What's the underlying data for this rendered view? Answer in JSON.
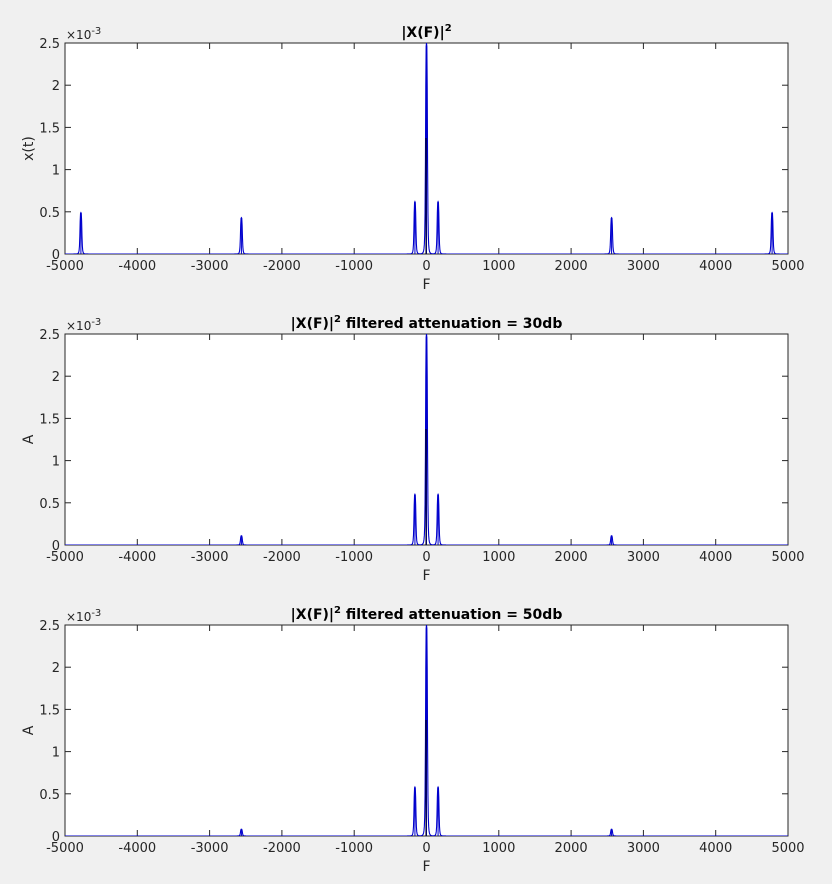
{
  "figure": {
    "background": "#f0f0f0",
    "axes_background": "#ffffff",
    "line_color": "#0000cd"
  },
  "chart_data": [
    {
      "type": "line",
      "title_main": "|X(F)|",
      "title_sup": "2",
      "title_rest": "",
      "xlabel": "F",
      "ylabel": "x(t)",
      "xlim": [
        -5000,
        5000
      ],
      "ylim": [
        0,
        2.5
      ],
      "y_exponent_base": "×10",
      "y_exponent": "-3",
      "x_ticks": [
        "-5000",
        "-4000",
        "-3000",
        "-2000",
        "-1000",
        "0",
        "1000",
        "2000",
        "3000",
        "4000",
        "5000"
      ],
      "y_ticks": [
        "0",
        "0.5",
        "1",
        "1.5",
        "2",
        "2.5"
      ],
      "grid": false,
      "series": [
        {
          "peaks": [
            {
              "f": -4780,
              "a": 0.49
            },
            {
              "f": -2560,
              "a": 0.43
            },
            {
              "f": -160,
              "a": 0.62
            },
            {
              "f": 0,
              "a": 2.5
            },
            {
              "f": 160,
              "a": 0.62
            },
            {
              "f": 2560,
              "a": 0.43
            },
            {
              "f": 4780,
              "a": 0.49
            }
          ]
        }
      ]
    },
    {
      "type": "line",
      "title_main": "|X(F)|",
      "title_sup": "2",
      "title_rest": " filtered attenuation = 30db",
      "xlabel": "F",
      "ylabel": "A",
      "xlim": [
        -5000,
        5000
      ],
      "ylim": [
        0,
        2.5
      ],
      "y_exponent_base": "×10",
      "y_exponent": "-3",
      "x_ticks": [
        "-5000",
        "-4000",
        "-3000",
        "-2000",
        "-1000",
        "0",
        "1000",
        "2000",
        "3000",
        "4000",
        "5000"
      ],
      "y_ticks": [
        "0",
        "0.5",
        "1",
        "1.5",
        "2",
        "2.5"
      ],
      "grid": false,
      "series": [
        {
          "peaks": [
            {
              "f": -2560,
              "a": 0.11
            },
            {
              "f": -160,
              "a": 0.6
            },
            {
              "f": 0,
              "a": 2.5
            },
            {
              "f": 160,
              "a": 0.6
            },
            {
              "f": 2560,
              "a": 0.11
            }
          ]
        }
      ]
    },
    {
      "type": "line",
      "title_main": "|X(F)|",
      "title_sup": "2",
      "title_rest": " filtered attenuation = 50db",
      "xlabel": "F",
      "ylabel": "A",
      "xlim": [
        -5000,
        5000
      ],
      "ylim": [
        0,
        2.5
      ],
      "y_exponent_base": "×10",
      "y_exponent": "-3",
      "x_ticks": [
        "-5000",
        "-4000",
        "-3000",
        "-2000",
        "-1000",
        "0",
        "1000",
        "2000",
        "3000",
        "4000",
        "5000"
      ],
      "y_ticks": [
        "0",
        "0.5",
        "1",
        "1.5",
        "2",
        "2.5"
      ],
      "grid": false,
      "series": [
        {
          "peaks": [
            {
              "f": -2560,
              "a": 0.08
            },
            {
              "f": -160,
              "a": 0.58
            },
            {
              "f": 0,
              "a": 2.5
            },
            {
              "f": 160,
              "a": 0.58
            },
            {
              "f": 2560,
              "a": 0.08
            }
          ]
        }
      ]
    }
  ]
}
